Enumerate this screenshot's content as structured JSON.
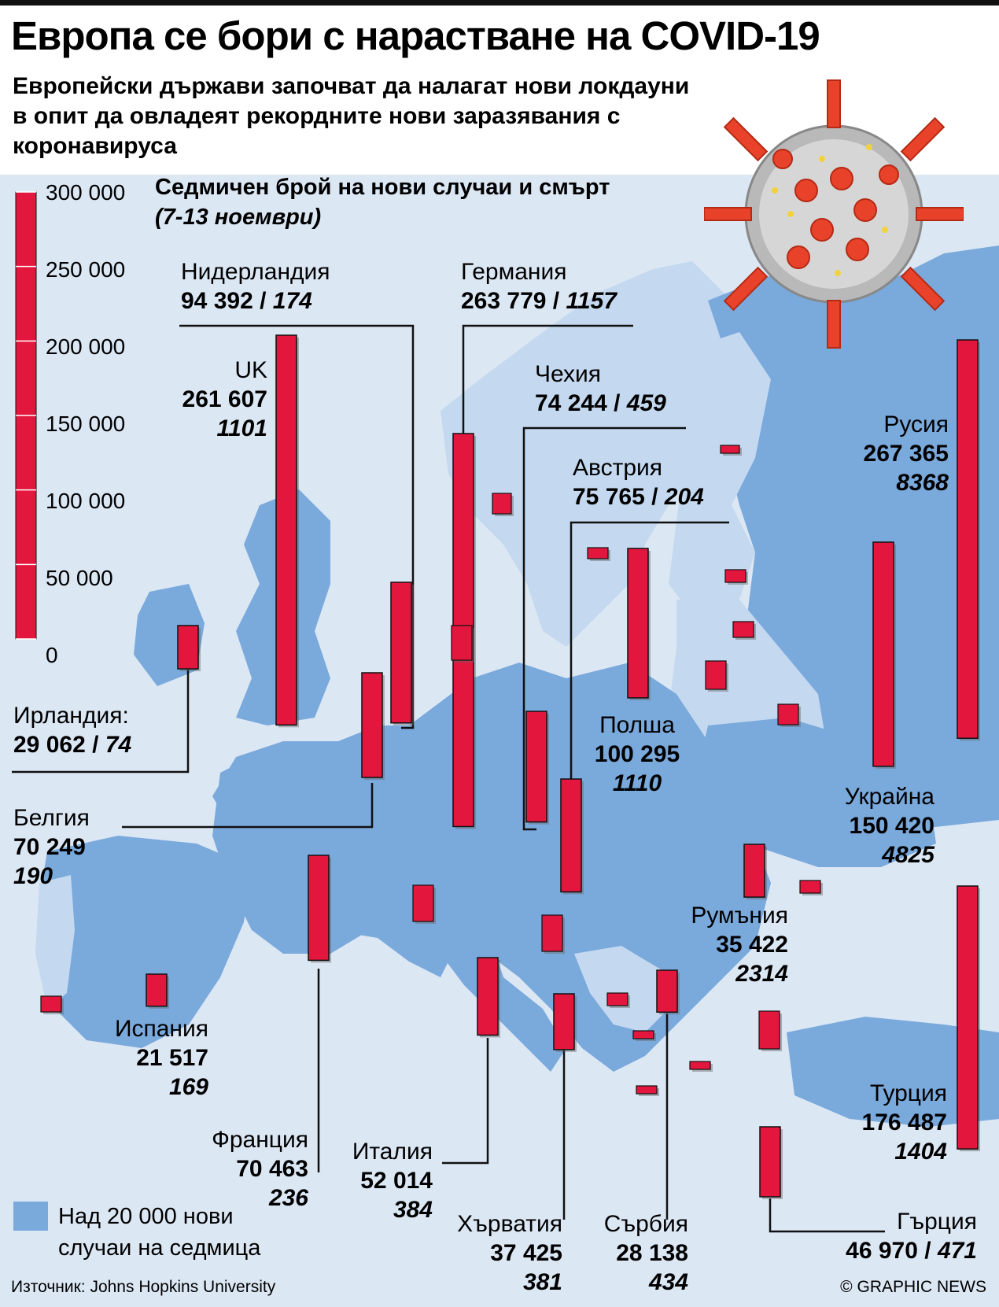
{
  "header": {
    "title": "Европа се бори с нарастване на COVID-19",
    "subtitle": "Европейски държави започват да налагат нови локдауни в опит да овладеят рекордните нови заразявания с коронавируса"
  },
  "chart_data": {
    "type": "bar",
    "title": "Седмичен брой на нови случаи и смърт",
    "period": "(7-13 ноември)",
    "scale": {
      "ylim": [
        0,
        300000
      ],
      "ticks": [
        300000,
        250000,
        200000,
        150000,
        100000,
        50000,
        0
      ],
      "tick_labels": [
        "300 000",
        "250 000",
        "200 000",
        "150 000",
        "100 000",
        "50 000",
        "0"
      ]
    },
    "bar_color": "#e3173e",
    "series": [
      {
        "name": "Нидерландия",
        "cases": 94392,
        "cases_label": "94 392",
        "deaths_label": "174"
      },
      {
        "name": "Германия",
        "cases": 263779,
        "cases_label": "263 779",
        "deaths_label": "1157"
      },
      {
        "name": "UK",
        "cases": 261607,
        "cases_label": "261 607",
        "deaths_label": "1101"
      },
      {
        "name": "Чехия",
        "cases": 74244,
        "cases_label": "74 244",
        "deaths_label": "459"
      },
      {
        "name": "Австрия",
        "cases": 75765,
        "cases_label": "75 765",
        "deaths_label": "204"
      },
      {
        "name": "Русия",
        "cases": 267365,
        "cases_label": "267 365",
        "deaths_label": "8368"
      },
      {
        "name": "Ирландия:",
        "cases": 29062,
        "cases_label": "29 062",
        "deaths_label": "74"
      },
      {
        "name": "Полша",
        "cases": 100295,
        "cases_label": "100 295",
        "deaths_label": "1110"
      },
      {
        "name": "Белгия",
        "cases": 70249,
        "cases_label": "70 249",
        "deaths_label": "190"
      },
      {
        "name": "Украйна",
        "cases": 150420,
        "cases_label": "150 420",
        "deaths_label": "4825"
      },
      {
        "name": "Румъния",
        "cases": 35422,
        "cases_label": "35 422",
        "deaths_label": "2314"
      },
      {
        "name": "Испания",
        "cases": 21517,
        "cases_label": "21 517",
        "deaths_label": "169"
      },
      {
        "name": "Турция",
        "cases": 176487,
        "cases_label": "176 487",
        "deaths_label": "1404"
      },
      {
        "name": "Франция",
        "cases": 70463,
        "cases_label": "70 463",
        "deaths_label": "236"
      },
      {
        "name": "Италия",
        "cases": 52014,
        "cases_label": "52 014",
        "deaths_label": "384"
      },
      {
        "name": "Хърватия",
        "cases": 37425,
        "cases_label": "37 425",
        "deaths_label": "381"
      },
      {
        "name": "Сърбия",
        "cases": 28138,
        "cases_label": "28 138",
        "deaths_label": "434"
      },
      {
        "name": "Гърция",
        "cases": 46970,
        "cases_label": "46 970",
        "deaths_label": "471"
      }
    ]
  },
  "legend": {
    "label": "Над 20 000 нови случаи на седмица",
    "color": "#7aa9dc"
  },
  "map_colors": {
    "sea": "#dce7f4",
    "land_light": "#c4d9ef",
    "land_dark": "#7aa9dc"
  },
  "footer": {
    "source": "Източник: Johns Hopkins University",
    "credit": "© GRAPHIC NEWS"
  }
}
